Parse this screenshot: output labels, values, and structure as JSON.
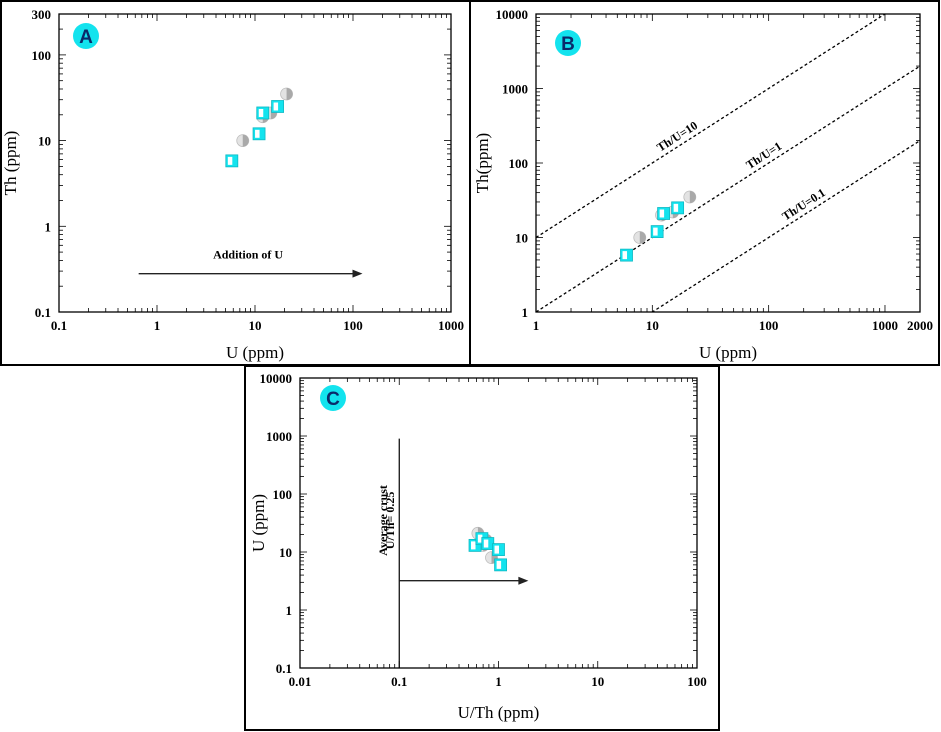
{
  "colors": {
    "cyan": "#13e3ee",
    "gray": "#a9a9a9",
    "gray_light": "#e3e3e3",
    "badge_text": "#0a2a6a"
  },
  "chart_data": [
    {
      "id": "A",
      "badge": "A",
      "type": "scatter",
      "x_scale": "log",
      "y_scale": "log",
      "xlabel": "U (ppm)",
      "ylabel": "Th (ppm)",
      "xlim": [
        0.1,
        1000
      ],
      "ylim": [
        0.1,
        300
      ],
      "x_ticks": [
        {
          "v": 0.1,
          "label": "0.1"
        },
        {
          "v": 1,
          "label": "1"
        },
        {
          "v": 10,
          "label": "10"
        },
        {
          "v": 100,
          "label": "100"
        },
        {
          "v": 1000,
          "label": "1000"
        }
      ],
      "y_ticks": [
        {
          "v": 0.1,
          "label": "0.1"
        },
        {
          "v": 1,
          "label": "1"
        },
        {
          "v": 10,
          "label": "10"
        },
        {
          "v": 100,
          "label": "100"
        },
        {
          "v": 300,
          "label": "300"
        }
      ],
      "series": [
        {
          "marker": "square",
          "points": [
            [
              5.8,
              5.8
            ],
            [
              11,
              12
            ],
            [
              12,
              21
            ],
            [
              17,
              25
            ]
          ]
        },
        {
          "marker": "circle",
          "points": [
            [
              7.5,
              10
            ],
            [
              12,
              19
            ],
            [
              14.5,
              21
            ],
            [
              21,
              35
            ]
          ]
        }
      ],
      "arrows": [
        {
          "from": [
            0.65,
            0.28
          ],
          "to": [
            125,
            0.28
          ]
        }
      ],
      "annotations": [
        {
          "text": "Addition of U",
          "x": 8.5,
          "y": 0.42
        }
      ]
    },
    {
      "id": "B",
      "badge": "B",
      "type": "scatter",
      "x_scale": "log",
      "y_scale": "log",
      "xlabel": "U (ppm)",
      "ylabel": "Th(ppm)",
      "xlim": [
        1,
        2000
      ],
      "ylim": [
        1,
        10000
      ],
      "x_ticks": [
        {
          "v": 1,
          "label": "1"
        },
        {
          "v": 10,
          "label": "10"
        },
        {
          "v": 100,
          "label": "100"
        },
        {
          "v": 1000,
          "label": "1000"
        },
        {
          "v": 2000,
          "label": "2000"
        }
      ],
      "y_ticks": [
        {
          "v": 1,
          "label": "1"
        },
        {
          "v": 10,
          "label": "10"
        },
        {
          "v": 100,
          "label": "100"
        },
        {
          "v": 1000,
          "label": "1000"
        },
        {
          "v": 10000,
          "label": "10000"
        }
      ],
      "series": [
        {
          "marker": "square",
          "points": [
            [
              6,
              5.8
            ],
            [
              11,
              12
            ],
            [
              12.5,
              21
            ],
            [
              16.5,
              25
            ]
          ]
        },
        {
          "marker": "circle",
          "points": [
            [
              7.8,
              10
            ],
            [
              12,
              20
            ],
            [
              15,
              22
            ],
            [
              21,
              35
            ]
          ]
        }
      ],
      "reference_lines": [
        {
          "label": "Th/U=10",
          "ratio": 10,
          "label_at_x": 18
        },
        {
          "label": "Th/U=1",
          "ratio": 1,
          "label_at_x": 100
        },
        {
          "label": "Th/U=0.1",
          "ratio": 0.1,
          "label_at_x": 220
        }
      ]
    },
    {
      "id": "C",
      "badge": "C",
      "type": "scatter",
      "x_scale": "log",
      "y_scale": "log",
      "xlabel": "U/Th (ppm)",
      "ylabel": "U (ppm)",
      "xlim": [
        0.01,
        100
      ],
      "ylim": [
        0.1,
        10000
      ],
      "x_ticks": [
        {
          "v": 0.01,
          "label": "0.01"
        },
        {
          "v": 0.1,
          "label": "0.1"
        },
        {
          "v": 1,
          "label": "1"
        },
        {
          "v": 10,
          "label": "10"
        },
        {
          "v": 100,
          "label": "100"
        }
      ],
      "y_ticks": [
        {
          "v": 0.1,
          "label": "0.1"
        },
        {
          "v": 1,
          "label": "1"
        },
        {
          "v": 10,
          "label": "10"
        },
        {
          "v": 100,
          "label": "100"
        },
        {
          "v": 1000,
          "label": "1000"
        },
        {
          "v": 10000,
          "label": "10000"
        }
      ],
      "series": [
        {
          "marker": "square",
          "points": [
            [
              0.58,
              13
            ],
            [
              0.68,
              17
            ],
            [
              0.78,
              14
            ],
            [
              1.0,
              11
            ],
            [
              1.05,
              6
            ]
          ]
        },
        {
          "marker": "circle",
          "points": [
            [
              0.62,
              21
            ],
            [
              0.7,
              13
            ],
            [
              0.75,
              16
            ],
            [
              0.85,
              8
            ]
          ]
        }
      ],
      "vline": {
        "x": 0.1,
        "y_from": 0.1,
        "y_to": 900
      },
      "arrows": [
        {
          "from": [
            0.1,
            3.2
          ],
          "to": [
            2.0,
            3.2
          ]
        }
      ],
      "annotations": [
        {
          "text": "Average crust",
          "x": 0.075,
          "y": 35,
          "rotate": true
        },
        {
          "text": "U/Th= 0.25",
          "x": 0.089,
          "y": 35,
          "rotate": true
        }
      ]
    }
  ]
}
